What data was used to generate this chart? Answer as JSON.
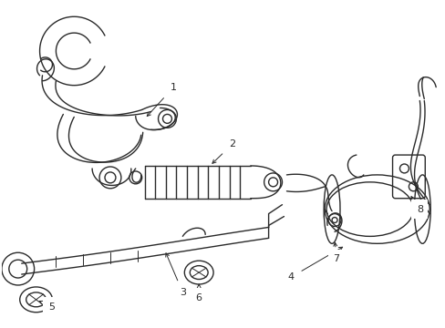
{
  "bg_color": "#ffffff",
  "line_color": "#2a2a2a",
  "line_width": 1.0,
  "fig_width": 4.89,
  "fig_height": 3.6,
  "dpi": 100
}
